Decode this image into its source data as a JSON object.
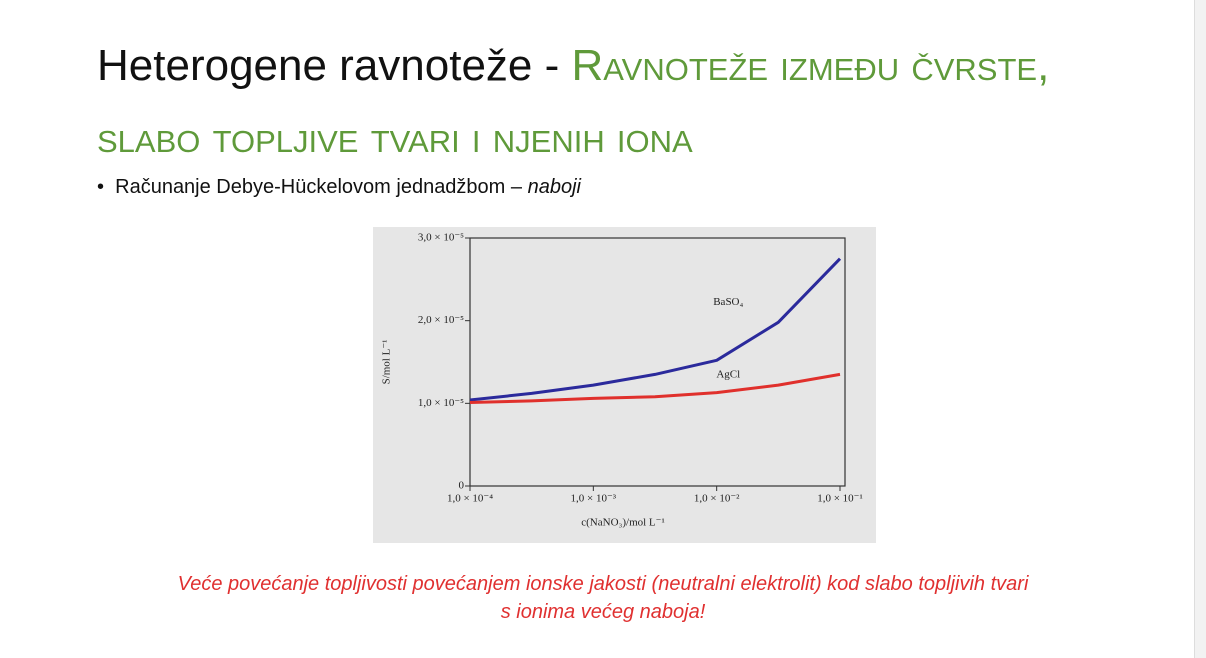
{
  "header": {
    "title_plain": "Heterogene ravnoteže - ",
    "title_accent": "Ravnoteže između čvrste, slabo topljive tvari i njenih iona"
  },
  "bullet": {
    "text": "Računanje Debye-Hückelovom jednadžbom – ",
    "emphasis": "naboji"
  },
  "chart_data": {
    "type": "line",
    "xlabel": "c(NaNO₃)/mol L⁻¹",
    "ylabel": "S/mol L⁻¹",
    "xscale": "log",
    "x": [
      0.0001,
      0.000316,
      0.001,
      0.00316,
      0.01,
      0.0316,
      0.1
    ],
    "series": [
      {
        "name": "BaSO₄",
        "color": "#2b2a9c",
        "values": [
          1.04e-05,
          1.12e-05,
          1.22e-05,
          1.35e-05,
          1.52e-05,
          1.98e-05,
          2.75e-05
        ]
      },
      {
        "name": "AgCl",
        "color": "#e0302c",
        "values": [
          1.01e-05,
          1.03e-05,
          1.06e-05,
          1.08e-05,
          1.13e-05,
          1.22e-05,
          1.35e-05
        ]
      }
    ],
    "xlim": [
      0.0001,
      0.1
    ],
    "xticks": [
      {
        "value": 0.0001,
        "label": "1,0 × 10⁻⁴"
      },
      {
        "value": 0.001,
        "label": "1,0 × 10⁻³"
      },
      {
        "value": 0.01,
        "label": "1,0 × 10⁻²"
      },
      {
        "value": 0.1,
        "label": "1,0 × 10⁻¹"
      }
    ],
    "ylim": [
      0,
      3e-05
    ],
    "yticks": [
      0,
      {
        "value": 1e-05,
        "label": "1,0 × 10⁻⁵"
      },
      {
        "value": 2e-05,
        "label": "2,0 × 10⁻⁵"
      },
      {
        "value": 3e-05,
        "label": "3,0 × 10⁻⁵"
      }
    ]
  },
  "footer": {
    "note": "Veće povećanje topljivosti povećanjem ionske jakosti (neutralni elektrolit) kod slabo topljivih tvari s ionima većeg naboja!"
  }
}
